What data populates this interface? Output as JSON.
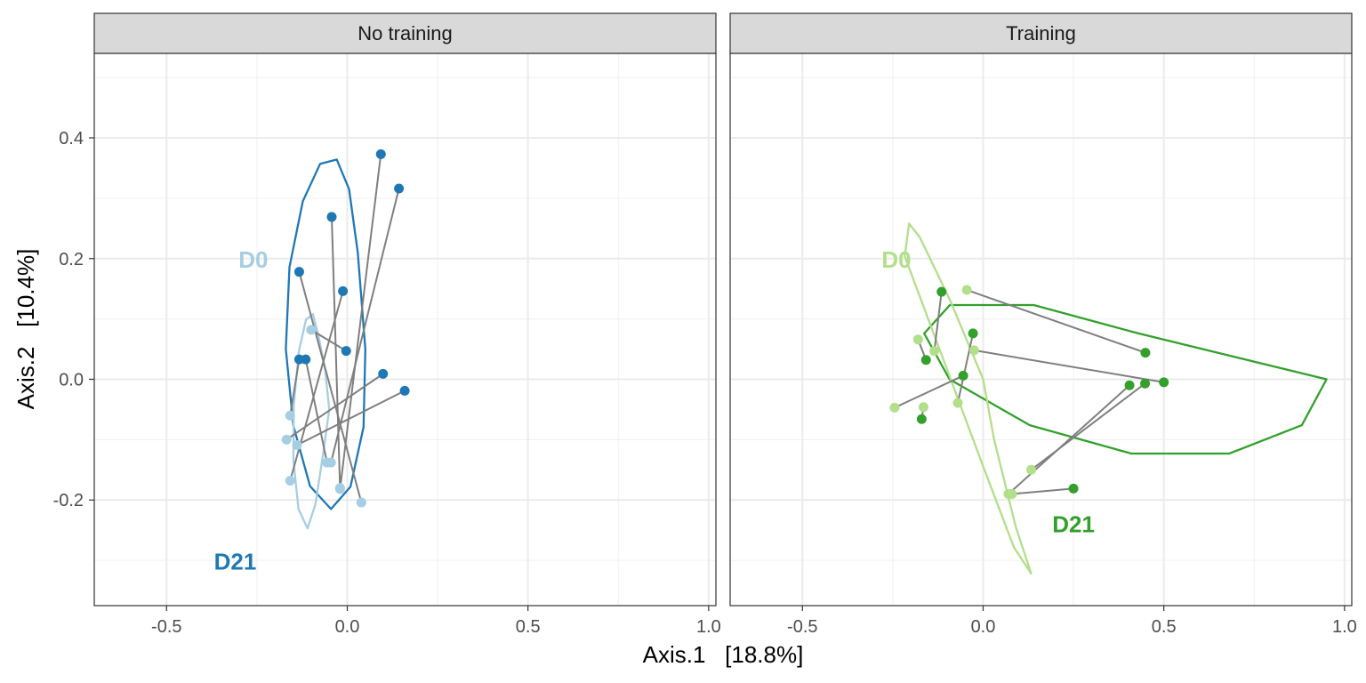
{
  "chart_data": {
    "type": "scatter",
    "xlabel": "Axis.1   [18.8%]",
    "ylabel": "Axis.2   [10.4%]",
    "xlim": [
      -0.7,
      1.02
    ],
    "ylim": [
      -0.375,
      0.54
    ],
    "x_ticks": [
      -0.5,
      0.0,
      0.5,
      1.0
    ],
    "x_tick_labels": [
      "-0.5",
      "0.0",
      "0.5",
      "1.0"
    ],
    "y_ticks": [
      0.4,
      0.2,
      0.0,
      -0.2
    ],
    "y_tick_labels": [
      "0.4",
      "0.2",
      "0.0",
      "-0.2"
    ],
    "grid": true,
    "panels": [
      {
        "title": "No training",
        "colors": {
          "D0": "#a6cee3",
          "D21": "#1f78b4"
        },
        "group_labels": [
          {
            "text": "D0",
            "x": -0.26,
            "y": 0.198,
            "group": "D0"
          },
          {
            "text": "D21",
            "x": -0.31,
            "y": -0.302,
            "group": "D21"
          }
        ],
        "ellipses": [
          {
            "group": "D21",
            "points": [
              [
                0.05,
                0.05
              ],
              [
                0.045,
                -0.079
              ],
              [
                0.009,
                -0.178
              ],
              [
                -0.045,
                -0.215
              ],
              [
                -0.103,
                -0.177
              ],
              [
                -0.149,
                -0.077
              ],
              [
                -0.17,
                0.05
              ],
              [
                -0.16,
                0.186
              ],
              [
                -0.123,
                0.295
              ],
              [
                -0.075,
                0.357
              ],
              [
                -0.029,
                0.364
              ],
              [
                0.005,
                0.315
              ],
              [
                0.029,
                0.21
              ],
              [
                0.05,
                0.05
              ]
            ]
          },
          {
            "group": "D0",
            "points": [
              [
                -0.05,
                -0.05
              ],
              [
                -0.067,
                -0.125
              ],
              [
                -0.088,
                -0.207
              ],
              [
                -0.11,
                -0.247
              ],
              [
                -0.135,
                -0.215
              ],
              [
                -0.149,
                -0.133
              ],
              [
                -0.148,
                -0.043
              ],
              [
                -0.134,
                0.046
              ],
              [
                -0.114,
                0.099
              ],
              [
                -0.095,
                0.108
              ],
              [
                -0.079,
                0.07
              ],
              [
                -0.061,
                0.015
              ],
              [
                -0.05,
                -0.05
              ]
            ]
          }
        ],
        "pairs": [
          {
            "d0": [
              -0.02,
              -0.182
            ],
            "d21": [
              0.093,
              0.373
            ]
          },
          {
            "d0": [
              -0.045,
              -0.138
            ],
            "d21": [
              0.143,
              0.316
            ]
          },
          {
            "d0": [
              -0.02,
              -0.18
            ],
            "d21": [
              -0.043,
              0.269
            ]
          },
          {
            "d0": [
              0.039,
              -0.204
            ],
            "d21": [
              -0.133,
              0.178
            ]
          },
          {
            "d0": [
              -0.158,
              -0.168
            ],
            "d21": [
              -0.012,
              0.146
            ]
          },
          {
            "d0": [
              -0.1,
              0.082
            ],
            "d21": [
              -0.003,
              0.047
            ]
          },
          {
            "d0": [
              -0.168,
              -0.1
            ],
            "d21": [
              0.099,
              0.009
            ]
          },
          {
            "d0": [
              -0.139,
              -0.109
            ],
            "d21": [
              0.159,
              -0.019
            ]
          },
          {
            "d0": [
              -0.158,
              -0.06
            ],
            "d21": [
              -0.133,
              0.033
            ]
          },
          {
            "d0": [
              -0.056,
              -0.138
            ],
            "d21": [
              -0.115,
              0.033
            ]
          }
        ]
      },
      {
        "title": "Training",
        "colors": {
          "D0": "#b2df8a",
          "D21": "#33a02c"
        },
        "group_labels": [
          {
            "text": "D0",
            "x": -0.24,
            "y": 0.198,
            "group": "D0"
          },
          {
            "text": "D21",
            "x": 0.25,
            "y": -0.24,
            "group": "D21"
          }
        ],
        "ellipses": [
          {
            "group": "D21",
            "points": [
              [
                0.95,
                0.0
              ],
              [
                0.882,
                -0.076
              ],
              [
                0.681,
                -0.123
              ],
              [
                0.41,
                -0.123
              ],
              [
                0.129,
                -0.076
              ],
              [
                -0.093,
                0.0
              ],
              [
                -0.163,
                0.076
              ],
              [
                -0.092,
                0.123
              ],
              [
                0.14,
                0.123
              ],
              [
                0.43,
                0.076
              ],
              [
                0.95,
                0.0
              ]
            ]
          },
          {
            "group": "D0",
            "points": [
              [
                0.0,
                0.0
              ],
              [
                0.03,
                -0.099
              ],
              [
                0.09,
                -0.244
              ],
              [
                0.133,
                -0.322
              ],
              [
                0.085,
                -0.278
              ],
              [
                -0.005,
                -0.136
              ],
              [
                -0.13,
                0.065
              ],
              [
                -0.217,
                0.204
              ],
              [
                -0.205,
                0.258
              ],
              [
                -0.175,
                0.235
              ],
              [
                -0.09,
                0.129
              ],
              [
                0.0,
                0.0
              ]
            ]
          }
        ],
        "pairs": [
          {
            "d0": [
              -0.045,
              0.148
            ],
            "d21": [
              0.449,
              0.044
            ]
          },
          {
            "d0": [
              -0.135,
              0.047
            ],
            "d21": [
              -0.115,
              0.145
            ]
          },
          {
            "d0": [
              -0.18,
              0.066
            ],
            "d21": [
              -0.158,
              0.032
            ]
          },
          {
            "d0": [
              -0.025,
              0.048
            ],
            "d21": [
              0.5,
              -0.005
            ]
          },
          {
            "d0": [
              -0.245,
              -0.047
            ],
            "d21": [
              -0.055,
              0.006
            ]
          },
          {
            "d0": [
              -0.07,
              -0.039
            ],
            "d21": [
              -0.028,
              0.076
            ]
          },
          {
            "d0": [
              -0.165,
              -0.046
            ],
            "d21": [
              -0.17,
              -0.066
            ]
          },
          {
            "d0": [
              0.133,
              -0.15
            ],
            "d21": [
              0.448,
              -0.007
            ]
          },
          {
            "d0": [
              0.07,
              -0.19
            ],
            "d21": [
              0.405,
              -0.01
            ]
          },
          {
            "d0": [
              0.08,
              -0.19
            ],
            "d21": [
              0.25,
              -0.181
            ]
          }
        ]
      }
    ]
  }
}
